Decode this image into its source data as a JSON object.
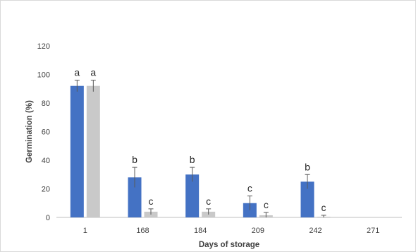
{
  "chart_data": {
    "type": "bar",
    "title": "",
    "xlabel": "Days of storage",
    "ylabel": "Germination (%)",
    "ylim": [
      0,
      120
    ],
    "yticks": [
      0,
      20,
      40,
      60,
      80,
      100,
      120
    ],
    "grid": false,
    "legend": "none",
    "categories": [
      "1",
      "168",
      "184",
      "209",
      "242",
      "271"
    ],
    "series": [
      {
        "color": "#4472c4",
        "values": [
          92,
          28,
          30,
          10,
          25,
          0
        ],
        "errors": [
          4,
          7,
          5,
          5,
          5,
          0
        ],
        "labels": [
          "a",
          "b",
          "b",
          "c",
          "b",
          ""
        ]
      },
      {
        "color": "#c9c9c9",
        "values": [
          92,
          4,
          4,
          1.5,
          0.5,
          0
        ],
        "errors": [
          4,
          2,
          2,
          2,
          1,
          0
        ],
        "labels": [
          "a",
          "c",
          "c",
          "c",
          "c",
          ""
        ]
      }
    ]
  }
}
